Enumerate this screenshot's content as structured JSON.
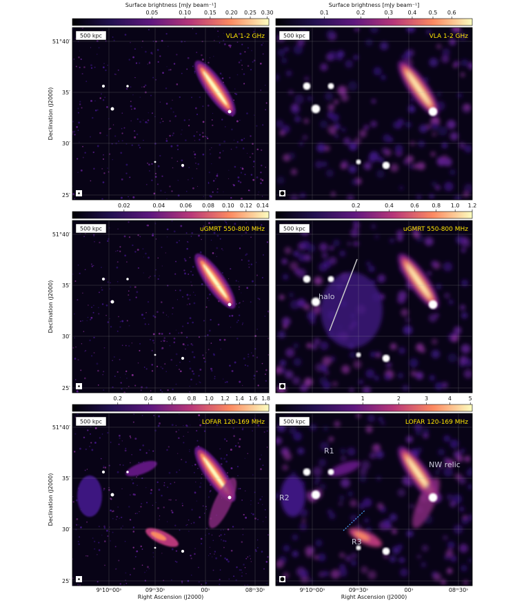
{
  "figure": {
    "colorbar_label": "Surface brightness [mJy beam⁻¹]",
    "scale_bar": "500 kpc",
    "y_label": "Declination (J2000)",
    "x_label": "Right Ascension (J2000)",
    "dec_ticks": [
      "51°40′",
      "35′",
      "30′",
      "25′"
    ],
    "ra_ticks": [
      "9ʰ10ᵐ00ˢ",
      "09ᵐ30ˢ",
      "00ˢ",
      "08ᵐ30ˢ"
    ],
    "panels": [
      {
        "band": "VLA 1-2 GHz",
        "colorbar": {
          "scale": "sqrt",
          "lim": [
            0,
            0.305
          ],
          "ticks": [
            0.05,
            {
              "value": 0.1,
              "label": "0.10"
            },
            0.15,
            {
              "value": 0.2,
              "label": "0.20"
            },
            0.25,
            {
              "value": 0.3,
              "label": "0.30"
            }
          ]
        }
      },
      {
        "band": "VLA 1-2 GHz",
        "colorbar": {
          "scale": "sqrt",
          "lim": [
            0.02,
            0.72
          ],
          "ticks": [
            0.1,
            0.2,
            0.3,
            0.4,
            0.5,
            0.6
          ]
        }
      },
      {
        "band": "uGMRT 550-800 MHz",
        "colorbar": {
          "scale": "sqrt",
          "lim": [
            0.003,
            0.148
          ],
          "ticks": [
            0.02,
            0.04,
            0.06,
            0.08,
            {
              "value": 0.1,
              "label": "0.10"
            },
            0.12,
            0.14
          ]
        }
      },
      {
        "band": "uGMRT 550-800 MHz",
        "colorbar": {
          "scale": "sqrt",
          "lim": [
            0,
            1.2
          ],
          "ticks": [
            0.2,
            0.4,
            0.6,
            0.8,
            {
              "value": 1,
              "label": "1.0"
            },
            1.2
          ]
        },
        "annotations": [
          "halo"
        ]
      },
      {
        "band": "LOFAR 120-169 MHz",
        "colorbar": {
          "scale": "sqrt",
          "lim": [
            0.03,
            1.85
          ],
          "ticks": [
            0.2,
            0.4,
            0.6,
            0.8,
            {
              "value": 1,
              "label": "1.0"
            },
            1.2,
            1.4,
            1.6,
            1.8
          ]
        }
      },
      {
        "band": "LOFAR 120-169 MHz",
        "colorbar": {
          "scale": "sqrt",
          "lim": [
            0,
            5.1
          ],
          "ticks": [
            1,
            2,
            3,
            4,
            5
          ]
        },
        "annotations": [
          "R1",
          "R2",
          "R3",
          "NW relic"
        ]
      }
    ]
  }
}
